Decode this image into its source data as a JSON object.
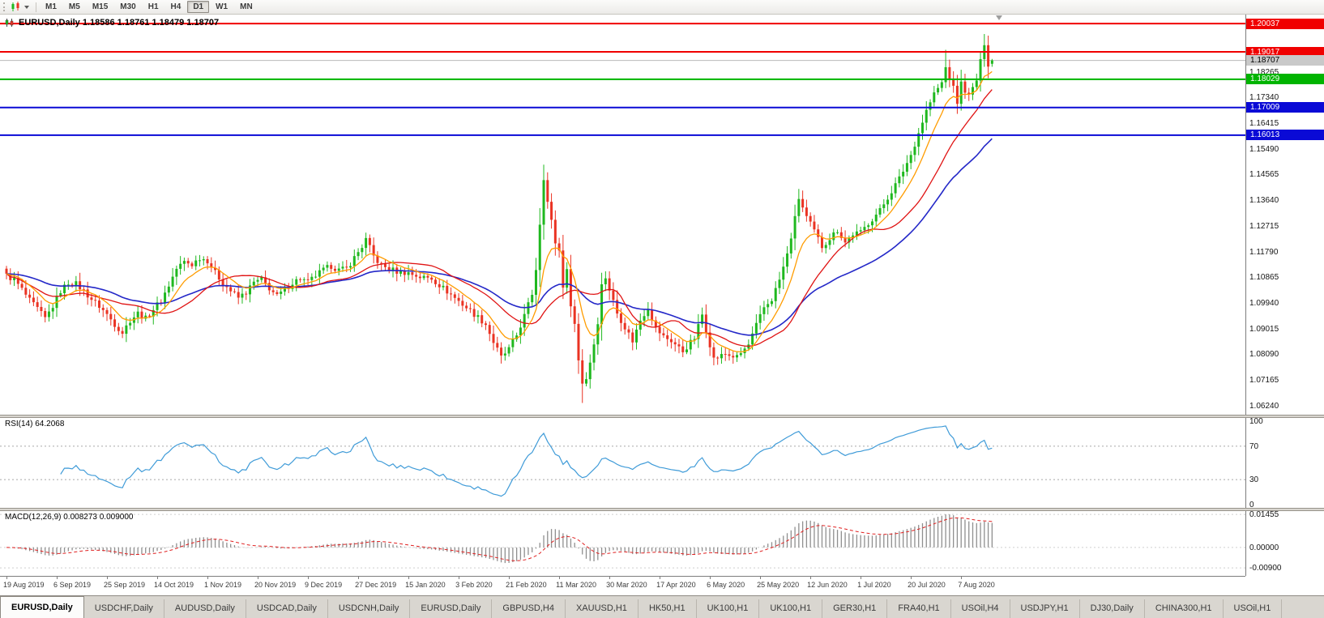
{
  "toolbar": {
    "timeframes": [
      "M1",
      "M5",
      "M15",
      "M30",
      "H1",
      "H4",
      "D1",
      "W1",
      "MN"
    ],
    "active": "D1",
    "chart_type_icon": "candlestick-chart-icon"
  },
  "main_chart": {
    "title": "EURUSD,Daily 1.18586 1.18761 1.18479 1.18707",
    "ohlc": {
      "open": "1.18586",
      "high": "1.18761",
      "low": "1.18479",
      "close": "1.18707"
    }
  },
  "chart_data": {
    "type": "candlestick",
    "symbol": "EURUSD",
    "timeframe": "Daily",
    "candle_count": 256,
    "noise": 0.0022,
    "close_path_anchors": [
      [
        0,
        1.1095
      ],
      [
        2,
        1.108
      ],
      [
        4,
        1.1045
      ],
      [
        6,
        1.1005
      ],
      [
        8,
        1.0975
      ],
      [
        10,
        1.094
      ],
      [
        12,
        1.0985
      ],
      [
        14,
        1.104
      ],
      [
        16,
        1.107
      ],
      [
        18,
        1.1065
      ],
      [
        20,
        1.104
      ],
      [
        22,
        1.101
      ],
      [
        24,
        1.0985
      ],
      [
        26,
        1.0955
      ],
      [
        28,
        1.092
      ],
      [
        30,
        1.089
      ],
      [
        32,
        1.0935
      ],
      [
        34,
        1.096
      ],
      [
        36,
        1.094
      ],
      [
        38,
        1.0975
      ],
      [
        40,
        1.1005
      ],
      [
        42,
        1.106
      ],
      [
        44,
        1.112
      ],
      [
        46,
        1.1145
      ],
      [
        48,
        1.1135
      ],
      [
        50,
        1.116
      ],
      [
        52,
        1.115
      ],
      [
        54,
        1.1105
      ],
      [
        56,
        1.107
      ],
      [
        58,
        1.104
      ],
      [
        60,
        1.1015
      ],
      [
        62,
        1.1035
      ],
      [
        64,
        1.107
      ],
      [
        66,
        1.108
      ],
      [
        68,
        1.105
      ],
      [
        70,
        1.102
      ],
      [
        72,
        1.1045
      ],
      [
        74,
        1.107
      ],
      [
        76,
        1.1085
      ],
      [
        78,
        1.107
      ],
      [
        80,
        1.1095
      ],
      [
        82,
        1.1115
      ],
      [
        84,
        1.113
      ],
      [
        86,
        1.1115
      ],
      [
        88,
        1.112
      ],
      [
        90,
        1.116
      ],
      [
        92,
        1.12
      ],
      [
        93,
        1.1225
      ],
      [
        95,
        1.1165
      ],
      [
        97,
        1.113
      ],
      [
        99,
        1.112
      ],
      [
        101,
        1.111
      ],
      [
        104,
        1.1105
      ],
      [
        107,
        1.109
      ],
      [
        110,
        1.1085
      ],
      [
        113,
        1.105
      ],
      [
        116,
        1.1015
      ],
      [
        119,
        1.098
      ],
      [
        122,
        1.0945
      ],
      [
        124,
        1.092
      ],
      [
        126,
        1.0855
      ],
      [
        128,
        1.08
      ],
      [
        130,
        1.083
      ],
      [
        132,
        1.088
      ],
      [
        134,
        1.095
      ],
      [
        136,
        1.103
      ],
      [
        137,
        1.112
      ],
      [
        139,
        1.145
      ],
      [
        140,
        1.136
      ],
      [
        141,
        1.129
      ],
      [
        142,
        1.1215
      ],
      [
        143,
        1.1185
      ],
      [
        144,
        1.106
      ],
      [
        145,
        1.111
      ],
      [
        146,
        1.0995
      ],
      [
        147,
        1.092
      ],
      [
        148,
        1.079
      ],
      [
        149,
        1.071
      ],
      [
        150,
        1.0725
      ],
      [
        151,
        1.0785
      ],
      [
        152,
        1.085
      ],
      [
        153,
        1.093
      ],
      [
        154,
        1.106
      ],
      [
        155,
        1.109
      ],
      [
        156,
        1.1045
      ],
      [
        158,
        1.096
      ],
      [
        160,
        1.091
      ],
      [
        162,
        1.086
      ],
      [
        164,
        1.0935
      ],
      [
        166,
        1.098
      ],
      [
        168,
        1.0905
      ],
      [
        170,
        1.0875
      ],
      [
        172,
        1.086
      ],
      [
        175,
        1.0822
      ],
      [
        178,
        1.087
      ],
      [
        180,
        1.0955
      ],
      [
        181,
        1.09
      ],
      [
        183,
        1.0795
      ],
      [
        186,
        1.0812
      ],
      [
        189,
        1.08
      ],
      [
        192,
        1.0845
      ],
      [
        194,
        1.0915
      ],
      [
        196,
        1.098
      ],
      [
        198,
        1.101
      ],
      [
        200,
        1.108
      ],
      [
        202,
        1.117
      ],
      [
        204,
        1.13
      ],
      [
        205,
        1.1375
      ],
      [
        207,
        1.1305
      ],
      [
        209,
        1.1255
      ],
      [
        211,
        1.12
      ],
      [
        213,
        1.123
      ],
      [
        215,
        1.126
      ],
      [
        217,
        1.1215
      ],
      [
        219,
        1.1245
      ],
      [
        221,
        1.125
      ],
      [
        223,
        1.1285
      ],
      [
        226,
        1.133
      ],
      [
        229,
        1.14
      ],
      [
        231,
        1.1445
      ],
      [
        234,
        1.153
      ],
      [
        236,
        1.161
      ],
      [
        238,
        1.169
      ],
      [
        240,
        1.175
      ],
      [
        242,
        1.179
      ],
      [
        243,
        1.1845
      ],
      [
        244,
        1.181
      ],
      [
        245,
        1.177
      ],
      [
        246,
        1.172
      ],
      [
        247,
        1.1788
      ],
      [
        249,
        1.174
      ],
      [
        251,
        1.18
      ],
      [
        252,
        1.1865
      ],
      [
        253,
        1.1935
      ],
      [
        254,
        1.1858
      ],
      [
        255,
        1.18707
      ]
    ],
    "wick_overrides": [
      [
        128,
        "l",
        1.0778
      ],
      [
        139,
        "h",
        1.1495
      ],
      [
        149,
        "l",
        1.0636
      ],
      [
        243,
        "h",
        1.1909
      ],
      [
        253,
        "h",
        1.1966
      ]
    ],
    "last_candle": {
      "o": 1.18586,
      "h": 1.18761,
      "l": 1.18479,
      "c": 1.18707
    },
    "candle_colors": {
      "up": "#1fb81f",
      "down": "#ea3323"
    },
    "moving_averages": [
      {
        "name": "slow",
        "method": "ema",
        "period": 42,
        "color": "#2428c8",
        "width": 1.6
      },
      {
        "name": "medium",
        "method": "sma",
        "period": 21,
        "color": "#e01414",
        "width": 1.3
      },
      {
        "name": "fast",
        "method": "ema",
        "period": 9,
        "color": "#ff9c00",
        "width": 1.3
      }
    ],
    "horizontal_lines": [
      {
        "price": 1.20037,
        "label": "1.20037",
        "color": "#f00000",
        "width": 2,
        "role": "resistance"
      },
      {
        "price": 1.19017,
        "label": "1.19017",
        "color": "#f00000",
        "width": 2,
        "role": "resistance"
      },
      {
        "price": 1.18707,
        "label": "1.18707",
        "color": "#b9b9b9",
        "width": 1,
        "style": "current",
        "role": "bid"
      },
      {
        "price": 1.18029,
        "label": "1.18029",
        "color": "#00b400",
        "width": 2,
        "role": "support"
      },
      {
        "price": 1.17009,
        "label": "1.17009",
        "color": "#0a0ad6",
        "width": 2,
        "role": "support"
      },
      {
        "price": 1.16013,
        "label": "1.16013",
        "color": "#0a0ad6",
        "width": 2,
        "role": "support"
      }
    ],
    "y_axis_labels": [
      "1.18265",
      "1.17340",
      "1.16415",
      "1.15490",
      "1.14565",
      "1.13640",
      "1.12715",
      "1.11790",
      "1.10865",
      "1.09940",
      "1.09015",
      "1.08090",
      "1.07165",
      "1.06240"
    ],
    "x_axis_labels": [
      {
        "i": 0,
        "t": "19 Aug 2019"
      },
      {
        "i": 13,
        "t": "6 Sep 2019"
      },
      {
        "i": 26,
        "t": "25 Sep 2019"
      },
      {
        "i": 39,
        "t": "14 Oct 2019"
      },
      {
        "i": 52,
        "t": "1 Nov 2019"
      },
      {
        "i": 65,
        "t": "20 Nov 2019"
      },
      {
        "i": 78,
        "t": "9 Dec 2019"
      },
      {
        "i": 91,
        "t": "27 Dec 2019"
      },
      {
        "i": 104,
        "t": "15 Jan 2020"
      },
      {
        "i": 117,
        "t": "3 Feb 2020"
      },
      {
        "i": 130,
        "t": "21 Feb 2020"
      },
      {
        "i": 143,
        "t": "11 Mar 2020"
      },
      {
        "i": 156,
        "t": "30 Mar 2020"
      },
      {
        "i": 169,
        "t": "17 Apr 2020"
      },
      {
        "i": 182,
        "t": "6 May 2020"
      },
      {
        "i": 195,
        "t": "25 May 2020"
      },
      {
        "i": 208,
        "t": "12 Jun 2020"
      },
      {
        "i": 221,
        "t": "1 Jul 2020"
      },
      {
        "i": 234,
        "t": "20 Jul 2020"
      },
      {
        "i": 247,
        "t": "7 Aug 2020"
      }
    ],
    "rsi": {
      "label": "RSI(14) 64.2068",
      "period": 14,
      "value": 64.2068,
      "color": "#3f9bd8",
      "scale_labels": [
        "100",
        "70",
        "30",
        "0"
      ],
      "guide_levels": [
        70,
        30
      ]
    },
    "macd": {
      "label": "MACD(12,26,9) 0.008273 0.009000",
      "fast": 12,
      "slow": 26,
      "signal_period": 9,
      "value": 0.008273,
      "signal_value": 0.009,
      "bar_color": "#8f8f8f",
      "signal_color": "#e02020",
      "scale_labels": [
        "0.01455",
        "0.00000",
        "-0.00900"
      ]
    }
  },
  "tabs": {
    "active_index": 0,
    "items": [
      "EURUSD,Daily",
      "USDCHF,Daily",
      "AUDUSD,Daily",
      "USDCAD,Daily",
      "USDCNH,Daily",
      "EURUSD,Daily",
      "GBPUSD,H4",
      "XAUUSD,H1",
      "HK50,H1",
      "UK100,H1",
      "UK100,H1",
      "GER30,H1",
      "FRA40,H1",
      "USOil,H4",
      "USDJPY,H1",
      "DJ30,Daily",
      "CHINA300,H1",
      "USOil,H1"
    ]
  }
}
